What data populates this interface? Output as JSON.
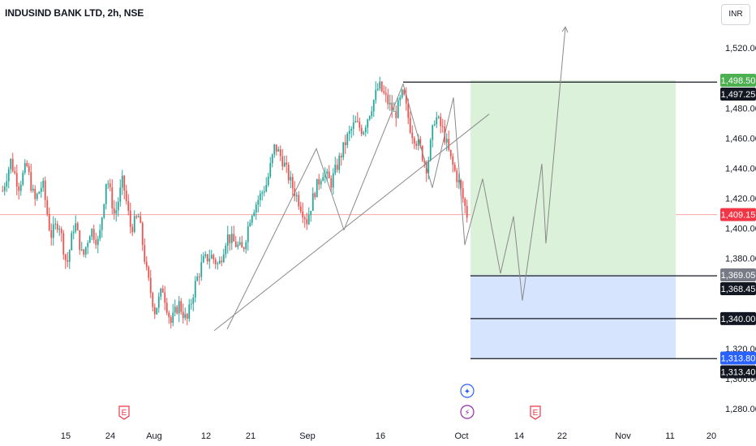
{
  "header": {
    "symbol_title": "INDUSIND BANK LTD, 2h, NSE",
    "currency": "INR"
  },
  "colors": {
    "up": "#26a69a",
    "down": "#ef5350",
    "target_zone": "#dcf1d9",
    "stop_zone": "#d6e4fd",
    "current_price_line": "#f7a5a5"
  },
  "chart_data": {
    "type": "candlestick",
    "ylim": [
      1265,
      1540
    ],
    "y_ticks": [
      "1,280.00",
      "1,300.00",
      "1,320.00",
      "1,340.00",
      "1,360.00",
      "1,380.00",
      "1,400.00",
      "1,420.00",
      "1,440.00",
      "1,460.00",
      "1,480.00",
      "1,500.00",
      "1,520.00"
    ],
    "x_ticks": [
      "15",
      "24",
      "Aug",
      "12",
      "21",
      "Sep",
      "16",
      "Oct",
      "14",
      "22",
      "Nov",
      "11",
      "20"
    ],
    "current_price": 1409.15,
    "price_badges": [
      {
        "label": "1,498.50",
        "value": 1498.5,
        "kind": "green"
      },
      {
        "label": "1,497.25",
        "value": 1497.25,
        "kind": "black"
      },
      {
        "label": "1,409.15",
        "value": 1409.15,
        "kind": "red"
      },
      {
        "label": "1,369.05",
        "value": 1369.05,
        "kind": "gray"
      },
      {
        "label": "1,368.45",
        "value": 1368.45,
        "kind": "black"
      },
      {
        "label": "1,340.00",
        "value": 1340.0,
        "kind": "black"
      },
      {
        "label": "1,313.80",
        "value": 1313.8,
        "kind": "blue"
      },
      {
        "label": "1,313.40",
        "value": 1313.4,
        "kind": "black"
      }
    ],
    "horizontal_levels": [
      1497.25,
      1368.45,
      1340.0,
      1313.4
    ],
    "target_zone": {
      "top": 1498.5,
      "bottom": 1369.05
    },
    "stop_zone": {
      "top": 1369.05,
      "bottom": 1313.8
    },
    "trendline": {
      "from": 1332,
      "to": 1476
    },
    "price_path": [
      1425,
      1445,
      1428,
      1442,
      1418,
      1430,
      1395,
      1405,
      1375,
      1405,
      1380,
      1400,
      1390,
      1435,
      1408,
      1432,
      1400,
      1408,
      1370,
      1345,
      1360,
      1337,
      1350,
      1338,
      1362,
      1378,
      1382,
      1375,
      1395,
      1390,
      1385,
      1410,
      1420,
      1430,
      1455,
      1445,
      1430,
      1418,
      1405,
      1425,
      1438,
      1430,
      1445,
      1460,
      1470,
      1465,
      1480,
      1495,
      1485,
      1475,
      1490,
      1465,
      1455,
      1440,
      1475,
      1465,
      1445,
      1430,
      1409
    ],
    "projection_path": [
      1389,
      1433,
      1370,
      1408,
      1352,
      1443,
      1390,
      1534
    ],
    "zigzag": [
      1333,
      1453,
      1399,
      1496,
      1427,
      1487,
      1389
    ],
    "event_markers": [
      {
        "label": "E",
        "kind": "earnings"
      },
      {
        "label": "✦",
        "kind": "news"
      },
      {
        "label": "⚡",
        "kind": "flash"
      },
      {
        "label": "E",
        "kind": "earnings"
      }
    ]
  }
}
